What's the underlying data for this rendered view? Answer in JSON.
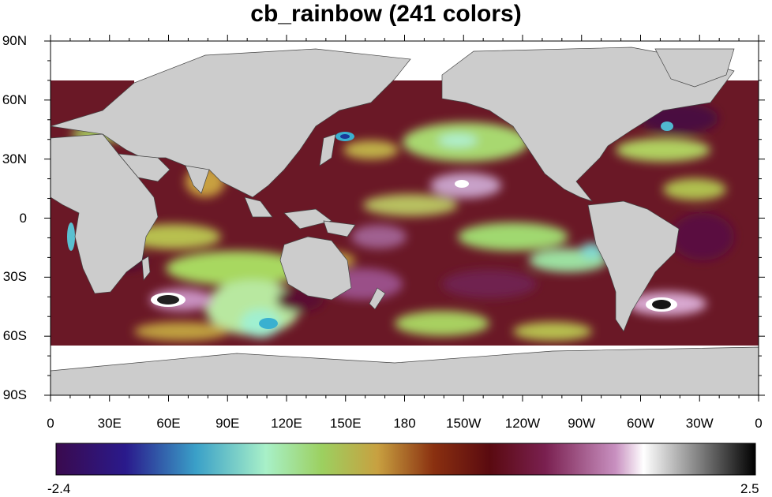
{
  "title": "cb_rainbow (241 colors)",
  "lat_labels": [
    "90N",
    "60N",
    "30N",
    "0",
    "30S",
    "60S",
    "90S"
  ],
  "lat_values": [
    90,
    60,
    30,
    0,
    -30,
    -60,
    -90
  ],
  "lon_labels": [
    "0",
    "30E",
    "60E",
    "90E",
    "120E",
    "150E",
    "180",
    "150W",
    "120W",
    "90W",
    "60W",
    "30W",
    "0"
  ],
  "lon_values": [
    0,
    30,
    60,
    90,
    120,
    150,
    180,
    210,
    240,
    270,
    300,
    330,
    360
  ],
  "colorbar": {
    "min_label": "-2.4",
    "max_label": "2.5",
    "min": -2.4,
    "max": 2.5,
    "n_colors": 241
  },
  "colors": {
    "land": "#cccccc",
    "ice": "#ffffff",
    "palette_stops": [
      "#3a0a4e",
      "#2a1a8c",
      "#3aa0c8",
      "#a8f0c8",
      "#9cd060",
      "#c8a040",
      "#8a3010",
      "#5a0a10",
      "#7a2050",
      "#c890c0",
      "#ffffff",
      "#202020"
    ]
  }
}
